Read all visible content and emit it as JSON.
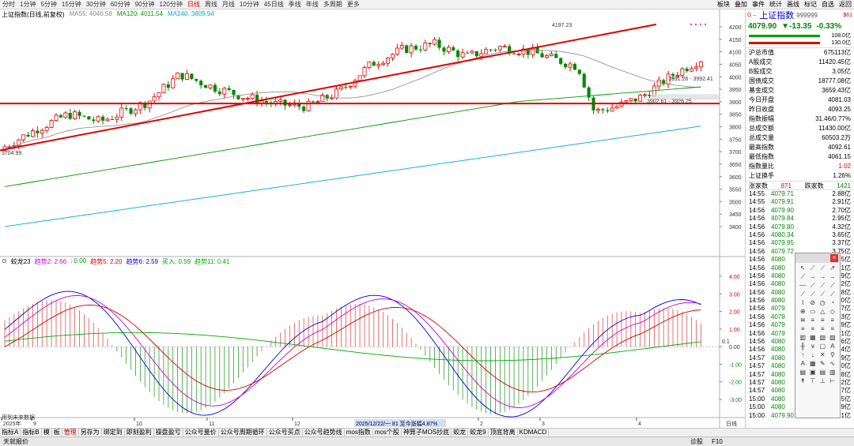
{
  "topbar": {
    "periods": [
      "分时",
      "1分钟",
      "5分钟",
      "15分钟",
      "30分钟",
      "60分钟",
      "90分钟",
      "120分钟",
      "日线",
      "周线",
      "月线",
      "10分钟",
      "45日线",
      "季线",
      "年线",
      "多周期",
      "更多"
    ],
    "active": "日线",
    "tools": [
      "板块",
      "叠加",
      "事件",
      "统计",
      "画线",
      "标记",
      "自选",
      "返回"
    ]
  },
  "main": {
    "title": "上证指数(日线,前复权)",
    "ma": [
      {
        "label": "MA55: 4046.58",
        "color": "#888888"
      },
      {
        "label": "MA120: 4011.54",
        "color": "#009900"
      },
      {
        "label": "MA240: 3809.94",
        "color": "#00aadd"
      }
    ],
    "high_label": "4197.23",
    "low_label": "3704.99",
    "range_label_1": "3991.26 - 3992.41",
    "range_label_2": "3902.61 - 3926.25",
    "yaxis": [
      "4200",
      "4150",
      "4100",
      "4050",
      "4000",
      "3950",
      "3900",
      "3850",
      "3800",
      "3750",
      "3700",
      "3650",
      "3600",
      "3550",
      "3500",
      "3450",
      "3400"
    ]
  },
  "indicator": {
    "name": "蛟龙23",
    "params": [
      {
        "label": "趋势2: 2.66",
        "color": "#cc00cc"
      },
      {
        "label": ": 0.00",
        "color": "#009900"
      },
      {
        "label": "趋势5: 2.20",
        "color": "#cc0000"
      },
      {
        "label": "趋势6: 2.59",
        "color": "#0000cc"
      },
      {
        "label": "买入: 0.59",
        "color": "#009900"
      },
      {
        "label": "趋势11: 0.41",
        "color": "#00aa00"
      }
    ],
    "yaxis": [
      "4.00",
      "3.00",
      "2.00",
      "1.00",
      "0.00",
      "-1.00",
      "-2.00",
      "-3.00"
    ],
    "side_value": "0.1",
    "note": "用到未来数据"
  },
  "xaxis": {
    "labels": [
      "2025年",
      "9",
      "10",
      "11",
      "12",
      "2",
      "3",
      "4"
    ],
    "highlight": "2025/12/22/一  81 至今涨幅4.87%",
    "period": "日线"
  },
  "quote": {
    "name": "上证指数",
    "code": "999999",
    "tag": "$61",
    "price": "4079.90",
    "change": "▼-13.35",
    "pct": "-0.33%",
    "vol1": "108.0亿",
    "vol2": "130.0亿",
    "rows": [
      [
        "沪总市值",
        "675113亿"
      ],
      [
        "A股成交",
        "11420.45亿"
      ],
      [
        "B股成交",
        "3.05亿"
      ],
      [
        "国债成交",
        "18777.08亿"
      ],
      [
        "基金成交",
        "3659.43亿"
      ],
      [
        "今日开盘",
        "4081.03"
      ],
      [
        "昨日收盘",
        "4093.25"
      ],
      [
        "指数振幅",
        "31.46/0.77%"
      ],
      [
        "总成交额",
        "11430.00亿"
      ],
      [
        "总成交量",
        "60503.2万"
      ],
      [
        "最高指数",
        "4092.61"
      ],
      [
        "最低指数",
        "4061.15"
      ],
      [
        "指数量比",
        "1.02"
      ],
      [
        "上证换手",
        "1.26%"
      ]
    ],
    "updown": {
      "up_label": "涨家数",
      "up": "871",
      "down_label": "跌家数",
      "down": "1421"
    },
    "ticks": [
      [
        "14:55",
        "4079.71",
        "2.88亿"
      ],
      [
        "14:55",
        "4079.91",
        "2.91亿"
      ],
      [
        "14:56",
        "4079.90",
        "2.70亿"
      ],
      [
        "14:56",
        "4079.84",
        "2.95亿"
      ],
      [
        "14:56",
        "4079.80",
        "4.32亿"
      ],
      [
        "14:56",
        "4080.34",
        "3.65亿"
      ],
      [
        "14:56",
        "4079.95",
        "3.37亿"
      ],
      [
        "14:56",
        "4079.72",
        "3.75亿"
      ],
      [
        "14:56",
        "4080",
        "3.5亿"
      ],
      [
        "14:56",
        "4080",
        "3.1亿"
      ],
      [
        "14:56",
        "4080",
        "2.9亿"
      ],
      [
        "14:56",
        "4080",
        "3.2亿"
      ],
      [
        "14:56",
        "4080",
        "2.8亿"
      ],
      [
        "14:56",
        "4080",
        "3.0亿"
      ],
      [
        "14:56",
        "4079",
        "2.7亿"
      ],
      [
        "14:56",
        "4079",
        "3.3亿"
      ],
      [
        "14:56",
        "4079",
        "2.9亿"
      ],
      [
        "14:56",
        "4079",
        "3.1亿"
      ],
      [
        "14:56",
        "4080",
        "2.6亿"
      ],
      [
        "14:56",
        "4080",
        "3.4亿"
      ],
      [
        "14:57",
        "4080",
        "2.9亿"
      ],
      [
        "14:57",
        "4080",
        "3.0亿"
      ],
      [
        "14:57",
        "4080",
        "2.8亿"
      ],
      [
        "14:57",
        "4080",
        "3.2亿"
      ],
      [
        "14:57",
        "4080",
        "2.7亿"
      ],
      [
        "15:00",
        "4080",
        "3.5亿"
      ],
      [
        "15:00",
        "4080",
        "2.9亿"
      ],
      [
        "15:00",
        "4079.90",
        "29.1亿"
      ]
    ]
  },
  "bottomtabs": [
    "指标A",
    "指标B",
    "模",
    "板",
    "管理",
    "另存为",
    "绑定到",
    "即刻盈利",
    "操盘盈亏",
    "公众号量价",
    "公众号周期循环",
    "公众号买点",
    "公众号趋势线",
    "mos指数",
    "mos个股",
    "神算子MOS抄底",
    "蛟龙",
    "蛟龙9",
    "顶底背离",
    "KDMACD"
  ],
  "active_tab": "管理",
  "status": {
    "left": "天就报价",
    "right1": "诊股",
    "right2": "F10"
  },
  "toolpal": {
    "icons": [
      "↖",
      "⟋",
      "⟋",
      "↗",
      "⟋",
      "→",
      "→",
      "→",
      "—",
      "⟋",
      "⟋",
      "⟋",
      "⟋",
      "⟋",
      "⟋",
      "⟋",
      "⌇",
      "⊘",
      "◷",
      "◔",
      "⊕",
      "▭",
      "△",
      "◇",
      "≋",
      "≡",
      "≡",
      "≡",
      "≡",
      "≡",
      "≡",
      "≡",
      "▥",
      "▦",
      "▧",
      "▨",
      "╫",
      "∨",
      "▢",
      "A",
      "↑",
      "↓",
      "✕",
      "⚲",
      "A",
      "▦",
      "✎",
      "∿",
      "▤",
      "▣",
      "▤",
      "▥",
      "↟",
      "⊤",
      "⊥",
      "⊢"
    ]
  }
}
